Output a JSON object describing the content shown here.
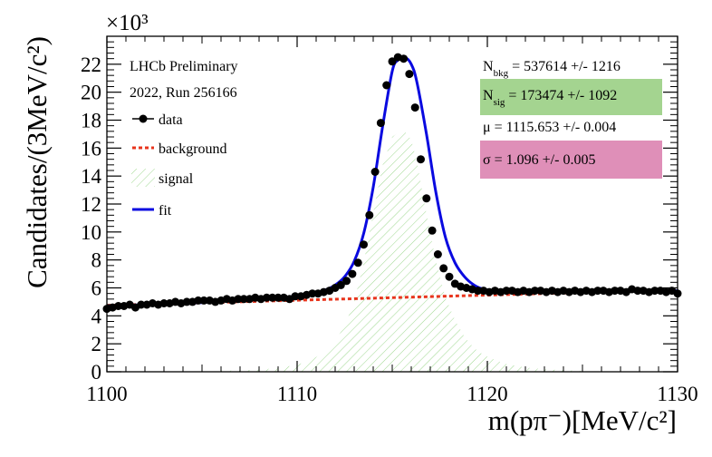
{
  "chart_data": {
    "type": "scatter",
    "xlabel": "m(pπ⁻)[MeV/c²]",
    "ylabel": "Candidates/(3MeV/c²)",
    "y_multiplier": "×10³",
    "xlim": [
      1100,
      1130
    ],
    "ylim": [
      0,
      24
    ],
    "x_ticks": [
      "1100",
      "1110",
      "1120",
      "1130"
    ],
    "y_ticks": [
      "0",
      "2",
      "4",
      "6",
      "8",
      "10",
      "12",
      "14",
      "16",
      "18",
      "20",
      "22"
    ],
    "legend": {
      "header1": "LHCb Preliminary",
      "header2": "2022, Run 256166",
      "entries": [
        {
          "key": "data",
          "label": "data",
          "color": "#000000"
        },
        {
          "key": "background",
          "label": "background",
          "color": "#e8341c"
        },
        {
          "key": "signal",
          "label": "signal",
          "color": "#9fd890"
        },
        {
          "key": "fit",
          "label": "fit",
          "color": "#0a0ae0"
        }
      ]
    },
    "stats": {
      "n_bkg": {
        "symbol": "N",
        "sub": "bkg",
        "value": "=  537614 +/- 1216"
      },
      "n_sig": {
        "symbol": "N",
        "sub": "sig",
        "value": "=  173474 +/- 1092",
        "color": "#a4d490"
      },
      "mu": {
        "text": "μ =  1115.653 +/- 0.004"
      },
      "sigma": {
        "text": "σ =  1.096 +/- 0.005",
        "color": "#df8fb8"
      }
    },
    "series": [
      {
        "name": "data",
        "x": [
          1100.0,
          1100.3,
          1100.6,
          1100.9,
          1101.2,
          1101.5,
          1101.8,
          1102.1,
          1102.4,
          1102.7,
          1103.0,
          1103.3,
          1103.6,
          1103.9,
          1104.2,
          1104.5,
          1104.8,
          1105.1,
          1105.4,
          1105.7,
          1106.0,
          1106.3,
          1106.6,
          1106.9,
          1107.2,
          1107.5,
          1107.8,
          1108.1,
          1108.4,
          1108.7,
          1109.0,
          1109.3,
          1109.6,
          1109.9,
          1110.2,
          1110.5,
          1110.8,
          1111.1,
          1111.4,
          1111.7,
          1112.0,
          1112.3,
          1112.6,
          1112.9,
          1113.2,
          1113.5,
          1113.8,
          1114.1,
          1114.4,
          1114.7,
          1115.0,
          1115.3,
          1115.6,
          1115.9,
          1116.2,
          1116.5,
          1116.8,
          1117.1,
          1117.4,
          1117.7,
          1118.0,
          1118.3,
          1118.6,
          1118.9,
          1119.2,
          1119.5,
          1119.8,
          1120.1,
          1120.4,
          1120.7,
          1121.0,
          1121.3,
          1121.6,
          1121.9,
          1122.2,
          1122.5,
          1122.8,
          1123.1,
          1123.4,
          1123.7,
          1124.0,
          1124.3,
          1124.6,
          1124.9,
          1125.2,
          1125.5,
          1125.8,
          1126.1,
          1126.4,
          1126.7,
          1127.0,
          1127.3,
          1127.6,
          1127.9,
          1128.2,
          1128.5,
          1128.8,
          1129.1,
          1129.4,
          1129.7,
          1130.0
        ],
        "y": [
          4.5,
          4.6,
          4.7,
          4.7,
          4.8,
          4.6,
          4.8,
          4.8,
          4.9,
          4.8,
          4.9,
          4.9,
          5.0,
          4.9,
          5.0,
          5.0,
          5.1,
          5.1,
          5.1,
          5.0,
          5.1,
          5.2,
          5.1,
          5.2,
          5.2,
          5.2,
          5.3,
          5.2,
          5.3,
          5.3,
          5.3,
          5.3,
          5.2,
          5.4,
          5.4,
          5.5,
          5.6,
          5.6,
          5.7,
          5.8,
          6.0,
          6.2,
          6.5,
          7.0,
          7.8,
          9.1,
          11.2,
          14.3,
          17.8,
          20.5,
          22.2,
          22.5,
          22.4,
          21.3,
          18.9,
          15.2,
          12.4,
          10.1,
          8.4,
          7.4,
          6.8,
          6.3,
          6.1,
          6.0,
          5.9,
          5.8,
          5.8,
          5.7,
          5.8,
          5.7,
          5.8,
          5.8,
          5.7,
          5.8,
          5.7,
          5.8,
          5.8,
          5.7,
          5.8,
          5.7,
          5.8,
          5.7,
          5.8,
          5.7,
          5.8,
          5.7,
          5.8,
          5.8,
          5.7,
          5.8,
          5.8,
          5.7,
          5.9,
          5.8,
          5.8,
          5.7,
          5.8,
          5.8,
          5.7,
          5.8,
          5.6
        ]
      },
      {
        "name": "background",
        "x": [
          1100,
          1130
        ],
        "y": [
          4.75,
          5.85
        ]
      },
      {
        "name": "signal",
        "x": [
          1106.0,
          1107.0,
          1108.0,
          1109.0,
          1110.0,
          1110.5,
          1111.0,
          1111.5,
          1112.0,
          1112.5,
          1113.0,
          1113.5,
          1114.0,
          1114.5,
          1115.0,
          1115.3,
          1115.65,
          1116.0,
          1116.3,
          1116.8,
          1117.3,
          1117.8,
          1118.3,
          1118.8,
          1119.3,
          1119.8,
          1120.5,
          1121.0,
          1122.0,
          1123.0,
          1124.0,
          1125.0
        ],
        "y": [
          0.07,
          0.1,
          0.16,
          0.26,
          0.5,
          0.72,
          1.05,
          1.5,
          2.2,
          3.3,
          5.0,
          7.8,
          11.4,
          14.8,
          16.8,
          17.1,
          17.2,
          16.6,
          15.0,
          11.3,
          7.9,
          5.3,
          3.7,
          2.5,
          1.7,
          1.2,
          0.8,
          0.55,
          0.3,
          0.18,
          0.11,
          0.07
        ]
      },
      {
        "name": "fit",
        "x": [
          1100.0,
          1101.0,
          1102.0,
          1103.0,
          1104.0,
          1105.0,
          1106.0,
          1107.0,
          1108.0,
          1109.0,
          1110.0,
          1110.5,
          1111.0,
          1111.5,
          1112.0,
          1112.5,
          1113.0,
          1113.5,
          1114.0,
          1114.5,
          1115.0,
          1115.3,
          1115.65,
          1116.0,
          1116.3,
          1116.8,
          1117.3,
          1117.8,
          1118.3,
          1118.8,
          1119.3,
          1119.8,
          1120.5,
          1121.0,
          1122.0,
          1123.0,
          1124.0,
          1125.0,
          1126.0,
          1127.0,
          1128.0,
          1129.0,
          1130.0
        ],
        "y": [
          4.7,
          4.75,
          4.8,
          4.85,
          4.9,
          4.95,
          5.05,
          5.1,
          5.2,
          5.3,
          5.4,
          5.5,
          5.65,
          5.85,
          6.2,
          6.8,
          7.9,
          9.9,
          13.2,
          17.6,
          21.5,
          22.3,
          22.5,
          22.0,
          20.7,
          17.0,
          12.8,
          9.6,
          7.8,
          6.8,
          6.2,
          5.9,
          5.75,
          5.7,
          5.7,
          5.7,
          5.7,
          5.75,
          5.75,
          5.75,
          5.8,
          5.8,
          5.8
        ]
      }
    ]
  }
}
